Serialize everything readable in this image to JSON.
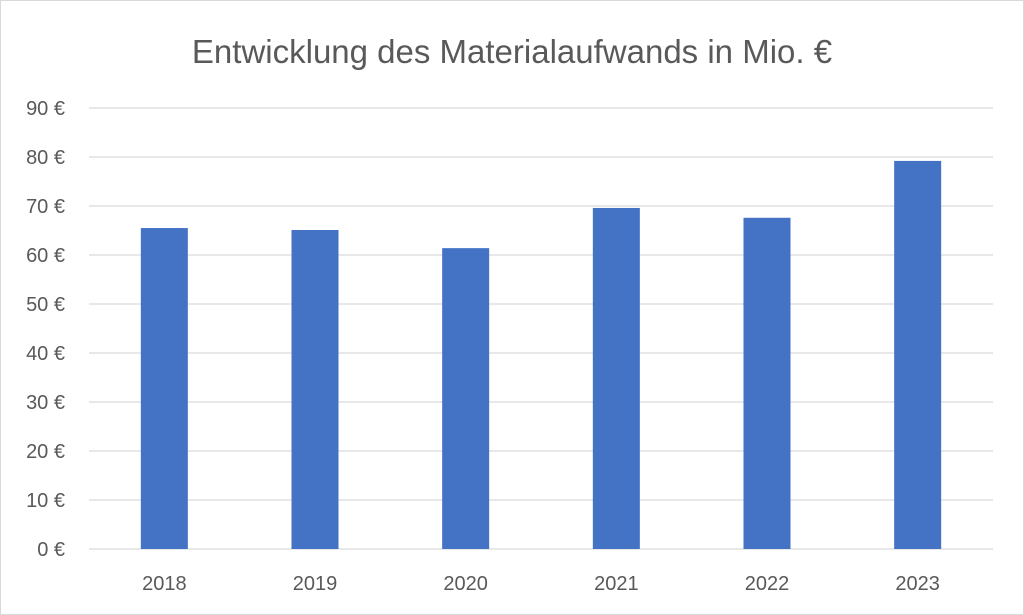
{
  "chart_data": {
    "type": "bar",
    "title": "Entwicklung des Materialaufwands in Mio. €",
    "categories": [
      "2018",
      "2019",
      "2020",
      "2021",
      "2022",
      "2023"
    ],
    "values": [
      65.5,
      65.1,
      61.4,
      69.6,
      67.6,
      79.2
    ],
    "y_tick_labels": [
      "0 €",
      "10 €",
      "20 €",
      "30 €",
      "40 €",
      "50 €",
      "60 €",
      "70 €",
      "80 €",
      "90 €"
    ],
    "ylim": [
      0,
      90
    ],
    "y_step": 10,
    "xlabel": "",
    "ylabel": "",
    "grid": true,
    "legend": "none",
    "bar_color": "#4472C4",
    "grid_color": "#D9D9D9",
    "text_color": "#595959"
  }
}
